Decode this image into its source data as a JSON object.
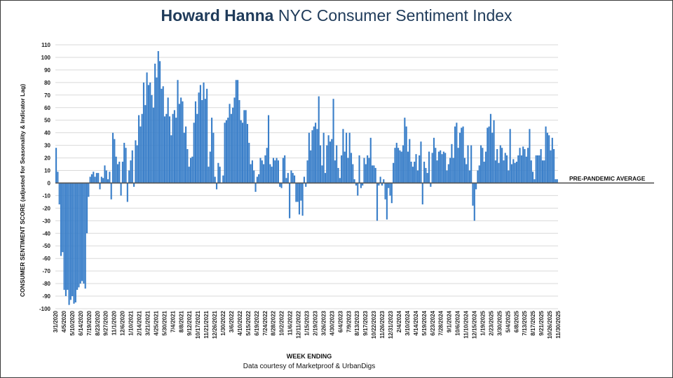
{
  "chart_data": {
    "type": "bar",
    "title_brand": "Howard Hanna",
    "title_rest": " NYC Consumer Sentiment Index",
    "xlabel": "WEEK ENDING",
    "ylabel": "CONSUMER SENTIMENT SCORE (adjusted for Seasonality & Indicator Lag)",
    "note": "Data courtesy of Marketproof & UrbanDigs",
    "reference_line": {
      "value": 0,
      "label": "PRE-PANDEMIC AVERAGE"
    },
    "ylim": [
      -100,
      110
    ],
    "yticks": [
      110,
      100,
      90,
      80,
      70,
      60,
      50,
      40,
      30,
      20,
      10,
      0,
      -10,
      -20,
      -30,
      -40,
      -50,
      -60,
      -70,
      -80,
      -90,
      -100
    ],
    "grid": true,
    "bar_color": "#3a7fc9",
    "x_tick_labels": [
      "3/1/2020",
      "4/5/2020",
      "5/10/2020",
      "6/14/2020",
      "7/19/2020",
      "8/23/2020",
      "9/27/2020",
      "11/1/2020",
      "12/6/2020",
      "1/10/2021",
      "2/14/2021",
      "3/21/2021",
      "4/25/2021",
      "5/30/2021",
      "7/4/2021",
      "8/8/2021",
      "9/12/2021",
      "10/17/2021",
      "11/21/2021",
      "12/26/2021",
      "1/30/2022",
      "3/6/2022",
      "4/10/2022",
      "5/15/2022",
      "6/19/2022",
      "7/24/2022",
      "8/28/2022",
      "10/2/2022",
      "11/6/2022",
      "12/11/2022",
      "1/15/2023",
      "2/19/2023",
      "3/26/2023",
      "4/30/2023",
      "6/4/2023",
      "7/9/2023",
      "8/13/2023",
      "9/17/2023",
      "10/22/2023",
      "11/26/2023",
      "12/31/2023",
      "2/4/2024",
      "3/10/2024",
      "4/14/2024",
      "5/19/2024",
      "6/23/2024",
      "7/28/2024",
      "9/1/2024",
      "10/6/2024",
      "11/10/2024",
      "12/15/2024",
      "1/19/2025",
      "2/23/2025",
      "3/30/2025",
      "5/4/2025",
      "6/8/2025",
      "7/13/2025",
      "8/17/2025",
      "9/21/2025",
      "10/26/2025",
      "11/30/2025"
    ],
    "values": [
      28,
      9,
      -17,
      -58,
      -55,
      -85,
      -90,
      -85,
      -97,
      -93,
      -90,
      -96,
      -95,
      -85,
      -83,
      -80,
      -78,
      -80,
      -84,
      -40,
      -11,
      5,
      7,
      9,
      5,
      8,
      8,
      -5,
      5,
      4,
      14,
      10,
      3,
      9,
      -13,
      40,
      35,
      21,
      15,
      17,
      -10,
      17,
      32,
      28,
      -15,
      10,
      18,
      26,
      -3,
      34,
      30,
      54,
      45,
      55,
      80,
      62,
      88,
      78,
      80,
      70,
      60,
      95,
      84,
      105,
      97,
      75,
      77,
      53,
      55,
      68,
      53,
      38,
      55,
      58,
      52,
      82,
      63,
      68,
      65,
      40,
      45,
      27,
      13,
      20,
      21,
      48,
      65,
      55,
      72,
      78,
      66,
      80,
      67,
      75,
      13,
      25,
      52,
      40,
      5,
      -5,
      16,
      13,
      0,
      6,
      48,
      50,
      52,
      63,
      55,
      60,
      68,
      82,
      82,
      66,
      50,
      48,
      58,
      58,
      47,
      32,
      15,
      18,
      10,
      -7,
      5,
      7,
      20,
      18,
      15,
      22,
      28,
      54,
      15,
      13,
      20,
      18,
      20,
      18,
      -3,
      -4,
      20,
      22,
      4,
      8,
      -28,
      10,
      8,
      6,
      -15,
      -15,
      -25,
      -14,
      -26,
      5,
      -3,
      18,
      40,
      26,
      42,
      45,
      48,
      43,
      69,
      30,
      14,
      40,
      8,
      30,
      38,
      33,
      35,
      67,
      18,
      30,
      12,
      4,
      22,
      43,
      25,
      40,
      20,
      40,
      24,
      15,
      3,
      -2,
      -10,
      22,
      -4,
      -2,
      20,
      15,
      22,
      20,
      36,
      14,
      14,
      12,
      -30,
      -2,
      5,
      -2,
      3,
      -13,
      -29,
      -4,
      -10,
      -16,
      16,
      28,
      32,
      28,
      26,
      25,
      30,
      52,
      45,
      25,
      35,
      17,
      13,
      17,
      23,
      10,
      22,
      33,
      -17,
      17,
      12,
      8,
      25,
      -3,
      24,
      36,
      28,
      18,
      25,
      26,
      23,
      25,
      24,
      10,
      15,
      20,
      31,
      20,
      45,
      48,
      28,
      40,
      44,
      45,
      20,
      15,
      30,
      10,
      30,
      -18,
      -30,
      -5,
      10,
      14,
      30,
      28,
      17,
      25,
      44,
      45,
      55,
      40,
      50,
      18,
      27,
      16,
      30,
      28,
      18,
      24,
      22,
      10,
      43,
      15,
      19,
      16,
      17,
      22,
      28,
      22,
      29,
      27,
      21,
      28,
      43,
      18,
      9,
      3,
      22,
      22,
      22,
      27,
      18,
      18,
      45,
      40,
      38,
      26,
      36,
      27,
      3,
      3
    ]
  }
}
